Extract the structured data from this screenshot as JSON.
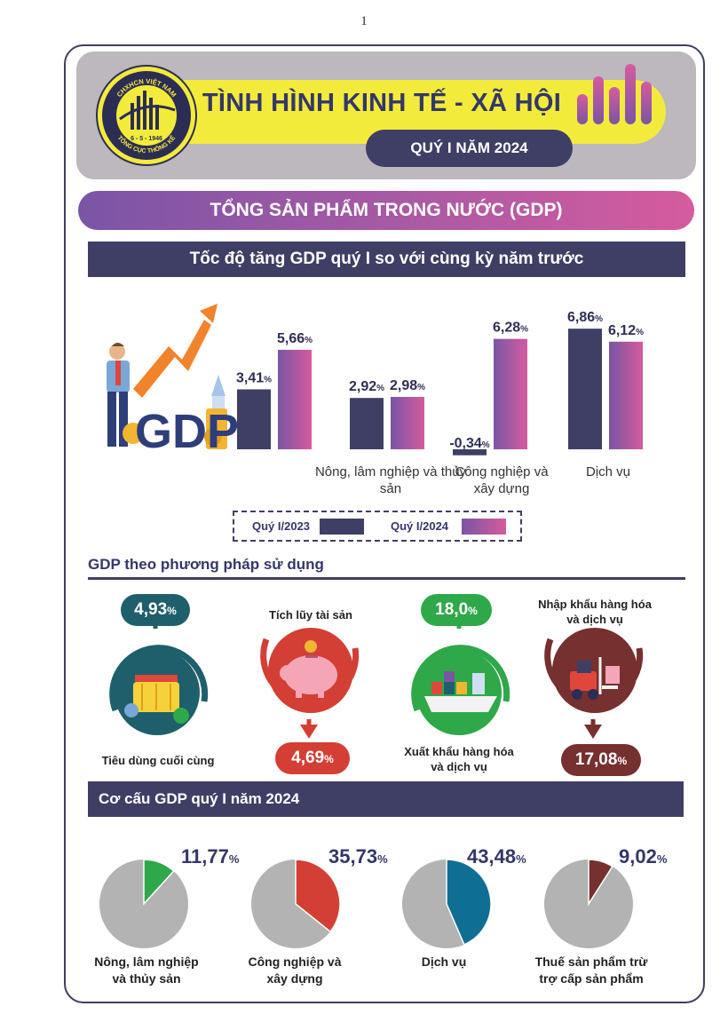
{
  "page_number": "1",
  "logo": {
    "top_text": "CHXHCN VIỆT NAM",
    "date_text": "6 - 5 - 1946",
    "bottom_text": "TỔNG CỤC THỐNG KÊ"
  },
  "header": {
    "title": "TÌNH HÌNH KINH TẾ - XÃ HỘI",
    "subtitle": "QUÝ I NĂM 2024"
  },
  "gdp_banner": "TỔNG SẢN PHẨM TRONG NƯỚC (GDP)",
  "colors": {
    "navy": "#3f3f66",
    "series_2024_start": "#7a55a6",
    "series_2024_end": "#d55b9d",
    "pie_base": "#b3b3b3",
    "pie_agri": "#2fa84a",
    "pie_industry": "#d33f35",
    "pie_services": "#0f6e93",
    "pie_tax": "#75302f"
  },
  "growth_section": {
    "title": "Tốc độ tăng GDP quý I so với cùng kỳ năm trước",
    "gdp_icon_text": "GDP",
    "legend": [
      "Quý I/2023",
      "Quý I/2024"
    ],
    "unit": "%"
  },
  "use_section": {
    "title": "GDP theo phương pháp sử dụng",
    "items": [
      {
        "label": "Tiêu dùng cuối cùng",
        "value": "4,93",
        "unit": "%",
        "icon": "shopping-basket-icon"
      },
      {
        "label": "Tích lũy tài sản",
        "value": "4,69",
        "unit": "%",
        "icon": "piggy-bank-icon"
      },
      {
        "label": "Xuất khẩu hàng hóa và dịch vụ",
        "value": "18,0",
        "unit": "%",
        "icon": "cargo-ship-icon"
      },
      {
        "label": "Nhập khẩu hàng hóa và dịch vụ",
        "value": "17,08",
        "unit": "%",
        "icon": "forklift-icon"
      }
    ]
  },
  "structure_section": {
    "title": "Cơ cấu GDP quý I năm 2024"
  },
  "chart_data": [
    {
      "type": "bar",
      "categories": [
        "",
        "Nông, lâm nghiệp và thủy sản",
        "Công nghiệp và xây dựng",
        "Dịch vụ"
      ],
      "series": [
        {
          "name": "Quý I/2023",
          "values": [
            3.41,
            2.92,
            -0.34,
            6.86
          ],
          "labels": [
            "3,41",
            "2,92",
            "-0,34",
            "6,86"
          ]
        },
        {
          "name": "Quý I/2024",
          "values": [
            5.66,
            2.98,
            6.28,
            6.12
          ],
          "labels": [
            "5,66",
            "2,98",
            "6,28",
            "6,12"
          ]
        }
      ],
      "title": "Tốc độ tăng GDP quý I so với cùng kỳ năm trước",
      "unit": "%",
      "ylim": [
        -0.5,
        7
      ]
    },
    {
      "type": "pie",
      "title": "Cơ cấu GDP quý I năm 2024",
      "slices": [
        {
          "label": "Nông, lâm nghiệp và thủy sản",
          "value": 11.77,
          "display": "11,77",
          "color": "#2fa84a"
        },
        {
          "label": "Công nghiệp và xây dựng",
          "value": 35.73,
          "display": "35,73",
          "color": "#d33f35"
        },
        {
          "label": "Dịch vụ",
          "value": 43.48,
          "display": "43,48",
          "color": "#0f6e93"
        },
        {
          "label": "Thuế sản phẩm trừ trợ cấp sản phẩm",
          "value": 9.02,
          "display": "9,02",
          "color": "#75302f"
        }
      ],
      "unit": "%"
    }
  ]
}
